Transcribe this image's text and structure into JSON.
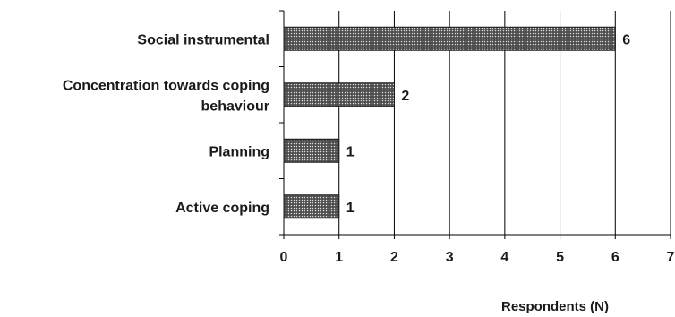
{
  "chart_data": {
    "type": "bar",
    "orientation": "horizontal",
    "categories": [
      [
        "Social instrumental"
      ],
      [
        "Concentration towards coping",
        "behaviour"
      ],
      [
        "Planning"
      ],
      [
        "Active coping"
      ]
    ],
    "values": [
      6,
      2,
      1,
      1
    ],
    "value_labels": [
      "6",
      "2",
      "1",
      "1"
    ],
    "xlabel": "Respondents (N)",
    "xlim": [
      0,
      7
    ],
    "xticks": [
      "0",
      "1",
      "2",
      "3",
      "4",
      "5",
      "6",
      "7"
    ],
    "grid": "vertical",
    "bar_fill": "dotted dark gray pattern",
    "colors": {
      "bar": "#555555",
      "dots": "#d9d9d9",
      "grid": "#000000"
    }
  }
}
